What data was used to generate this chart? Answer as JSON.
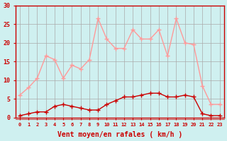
{
  "hours": [
    0,
    1,
    2,
    3,
    4,
    5,
    6,
    7,
    8,
    9,
    10,
    11,
    12,
    13,
    14,
    15,
    16,
    17,
    18,
    19,
    20,
    21,
    22,
    23
  ],
  "wind_avg": [
    0.5,
    1,
    1.5,
    1.5,
    3,
    3.5,
    3,
    2.5,
    2,
    2,
    3.5,
    4.5,
    5.5,
    5.5,
    6,
    6.5,
    6.5,
    5.5,
    5.5,
    6,
    5.5,
    1,
    0.5,
    0.5
  ],
  "wind_gust": [
    6,
    8,
    10.5,
    16.5,
    15.5,
    10.5,
    14,
    13,
    15.5,
    26.5,
    21,
    18.5,
    18.5,
    23.5,
    21,
    21,
    23.5,
    16.5,
    26.5,
    20,
    19.5,
    8.5,
    3.5,
    3.5
  ],
  "avg_color": "#cc0000",
  "gust_color": "#ff9999",
  "bg_color": "#cff0f0",
  "grid_color": "#aaaaaa",
  "axis_color": "#cc0000",
  "xlabel": "Vent moyen/en rafales ( km/h )",
  "ylim": [
    0,
    30
  ],
  "yticks": [
    0,
    5,
    10,
    15,
    20,
    25,
    30
  ],
  "xlim": [
    0,
    23
  ]
}
